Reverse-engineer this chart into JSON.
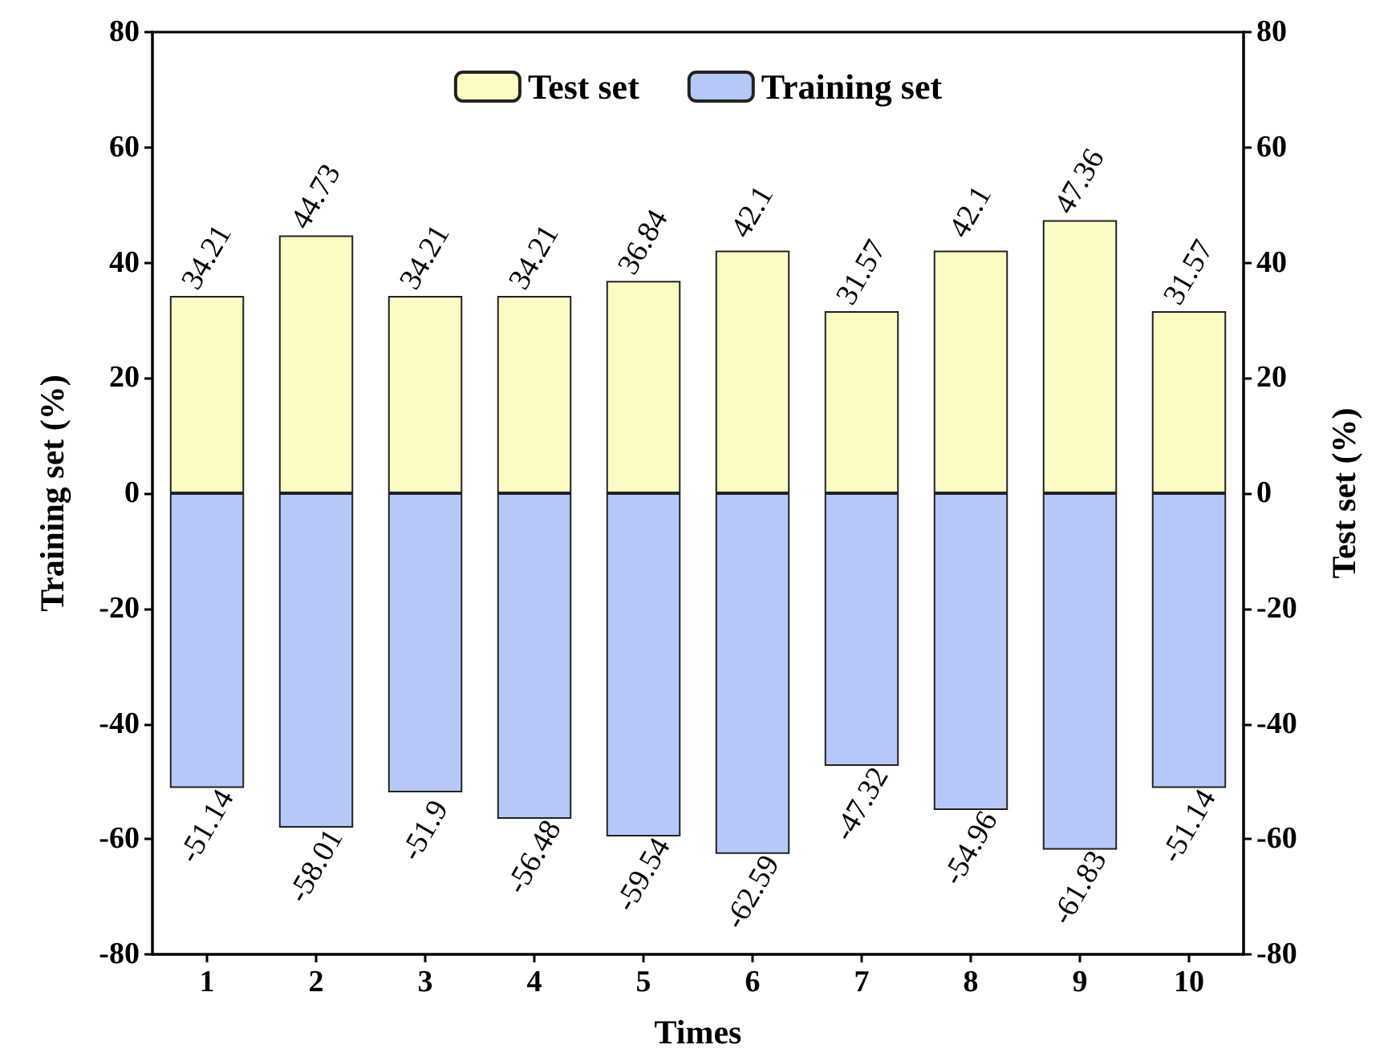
{
  "chart_data": {
    "type": "bar",
    "xlabel": "Times",
    "ylabel": "Training set (%)",
    "y2label": "Test set (%)",
    "categories": [
      "1",
      "2",
      "3",
      "4",
      "5",
      "6",
      "7",
      "8",
      "9",
      "10"
    ],
    "series": [
      {
        "name": "Test set",
        "color": "#fbfbc4",
        "values": [
          34.21,
          44.73,
          34.21,
          34.21,
          36.84,
          42.1,
          31.57,
          42.1,
          47.36,
          31.57
        ]
      },
      {
        "name": "Training set",
        "color": "#b6c8f8",
        "values": [
          -51.14,
          -58.01,
          -51.9,
          -56.48,
          -59.54,
          -62.59,
          -47.32,
          -54.96,
          -61.83,
          -51.14
        ]
      }
    ],
    "ylim": [
      -80,
      80
    ],
    "yticks": [
      -80,
      -60,
      -40,
      -20,
      0,
      20,
      40,
      60,
      80
    ],
    "y2lim": [
      -80,
      80
    ],
    "y2ticks": [
      -80,
      -60,
      -40,
      -20,
      0,
      20,
      40,
      60,
      80
    ],
    "stacked": true,
    "data_labels": true,
    "legend": "top",
    "grid": false
  }
}
